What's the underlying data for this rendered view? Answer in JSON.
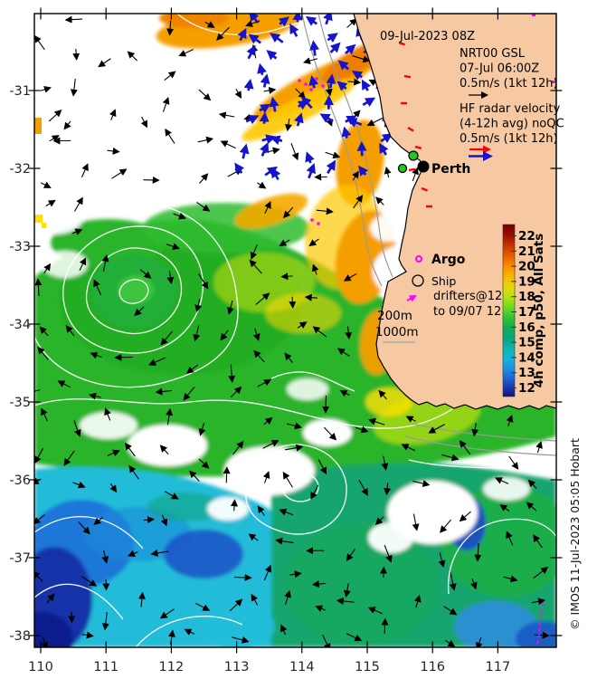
{
  "header": {
    "datetime": "09-Jul-2023 08Z"
  },
  "annotations": {
    "geostrophic": {
      "lines": [
        "NRT00 GSL",
        "07-Jul 06:00Z",
        "0.5m/s (1kt 12h)"
      ]
    },
    "hf_radar": {
      "lines": [
        "HF radar velocity",
        "(4-12h avg) noQC",
        "0.5m/s (1kt 12h)"
      ]
    }
  },
  "city_label": "Perth",
  "legend": {
    "argo_label": "Argo",
    "ship_label": "Ship",
    "drifters_line1": "drifters@12",
    "drifters_line2": "to 09/07 12",
    "isobath_200_label": "200m",
    "isobath_1000_label": "1000m"
  },
  "colorbar": {
    "label": "4h comp, p50, All Sats",
    "tick_values": [
      22,
      21,
      20,
      19,
      18,
      17,
      16,
      15,
      14,
      13,
      12
    ]
  },
  "axes": {
    "x_tick_labels": [
      "110",
      "111",
      "112",
      "113",
      "114",
      "115",
      "116",
      "117"
    ],
    "y_tick_labels": [
      "-31",
      "-32",
      "-33",
      "-34",
      "-35",
      "-36",
      "-37",
      "-38"
    ]
  },
  "credit": "© IMOS 11-Jul-2023 05:05 Hobart",
  "colors": {
    "land": "#f6c9a2",
    "hf_vector_blue": "#1414cd",
    "current_vector_black": "#000000",
    "argo_magenta": "#ff00ff",
    "drifter_magenta": "#ff00ff",
    "gsl_scale_red": "#ff0000",
    "ship_green": "#22c81e",
    "sst_min_blue": "#111178",
    "sst_max_red": "#720000"
  }
}
